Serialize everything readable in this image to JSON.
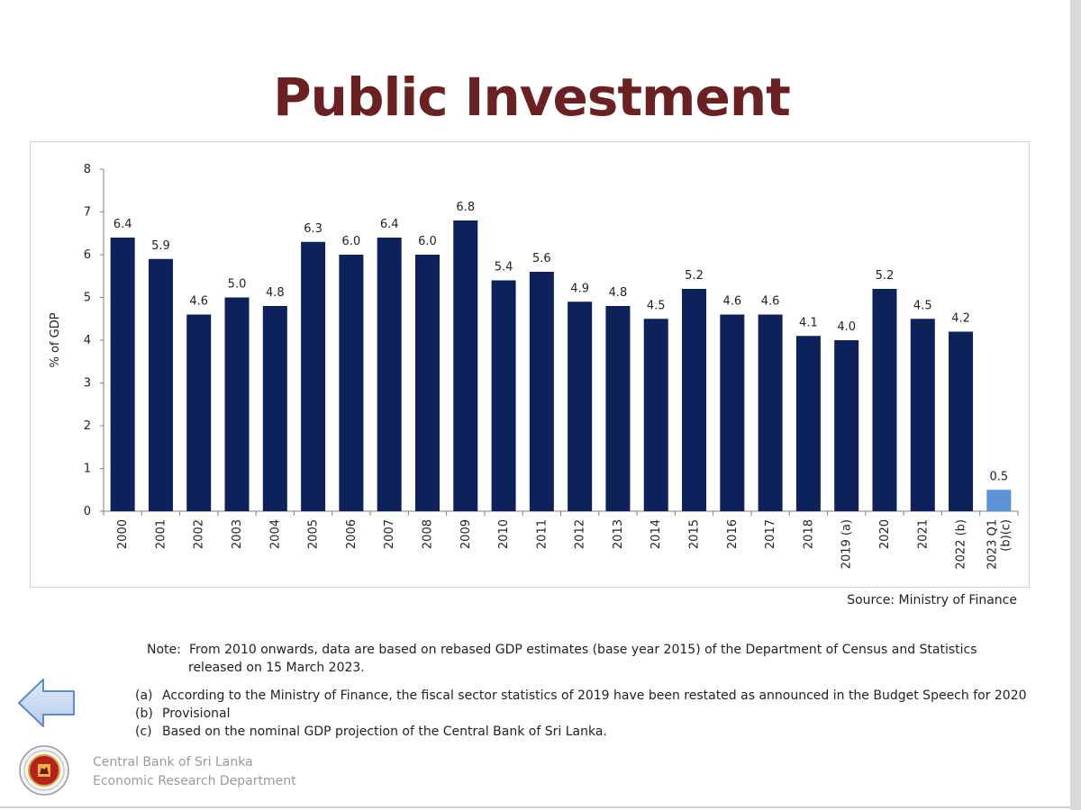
{
  "slide": {
    "title": "Public Investment",
    "source": "Source: Ministry of Finance",
    "note_label": "Note:",
    "note_line1": "From 2010 onwards, data are based on rebased GDP estimates (base year 2015) of the Department of Census and Statistics",
    "note_line2": "released on 15 March 2023.",
    "footnotes": [
      {
        "marker": "(a)",
        "text": "According to the Ministry of Finance, the fiscal sector statistics of 2019 have been restated as announced in the Budget Speech for 2020"
      },
      {
        "marker": "(b)",
        "text": "Provisional"
      },
      {
        "marker": "(c)",
        "text": "Based on the nominal GDP projection of the Central Bank of Sri Lanka."
      }
    ],
    "org_line1": "Central Bank of Sri Lanka",
    "org_line2": "Economic Research Department",
    "back_icon": "left-arrow-icon",
    "logo_icon": "central-bank-seal-icon"
  },
  "colors": {
    "title": "#6b2121",
    "bar": "#0d215b",
    "bar_highlight": "#5b93d6",
    "back_arrow_fill": "#c9dbf3",
    "back_arrow_stroke": "#5b8bd3"
  },
  "chart_data": {
    "type": "bar",
    "title": "",
    "xlabel": "",
    "ylabel": "% of GDP",
    "ylim": [
      0,
      8
    ],
    "yticks": [
      0,
      1,
      2,
      3,
      4,
      5,
      6,
      7,
      8
    ],
    "grid": false,
    "legend": "none",
    "categories": [
      "2000",
      "2001",
      "2002",
      "2003",
      "2004",
      "2005",
      "2006",
      "2007",
      "2008",
      "2009",
      "2010",
      "2011",
      "2012",
      "2013",
      "2014",
      "2015",
      "2016",
      "2017",
      "2018",
      "2019 (a)",
      "2020",
      "2021",
      "2022 (b)",
      "2023 Q1 (b)(c)"
    ],
    "category_lines": [
      [
        "2000"
      ],
      [
        "2001"
      ],
      [
        "2002"
      ],
      [
        "2003"
      ],
      [
        "2004"
      ],
      [
        "2005"
      ],
      [
        "2006"
      ],
      [
        "2007"
      ],
      [
        "2008"
      ],
      [
        "2009"
      ],
      [
        "2010"
      ],
      [
        "2011"
      ],
      [
        "2012"
      ],
      [
        "2013"
      ],
      [
        "2014"
      ],
      [
        "2015"
      ],
      [
        "2016"
      ],
      [
        "2017"
      ],
      [
        "2018"
      ],
      [
        "2019 (a)"
      ],
      [
        "2020"
      ],
      [
        "2021"
      ],
      [
        "2022 (b)"
      ],
      [
        "2023 Q1",
        "(b)(c)"
      ]
    ],
    "values": [
      6.4,
      5.9,
      4.6,
      5.0,
      4.8,
      6.3,
      6.0,
      6.4,
      6.0,
      6.8,
      5.4,
      5.6,
      4.9,
      4.8,
      4.5,
      5.2,
      4.6,
      4.6,
      4.1,
      4.0,
      5.2,
      4.5,
      4.2,
      0.5
    ],
    "value_labels": [
      "6.4",
      "5.9",
      "4.6",
      "5.0",
      "4.8",
      "6.3",
      "6.0",
      "6.4",
      "6.0",
      "6.8",
      "5.4",
      "5.6",
      "4.9",
      "4.8",
      "4.5",
      "5.2",
      "4.6",
      "4.6",
      "4.1",
      "4.0",
      "5.2",
      "4.5",
      "4.2",
      "0.5"
    ],
    "highlight_index": 23
  }
}
